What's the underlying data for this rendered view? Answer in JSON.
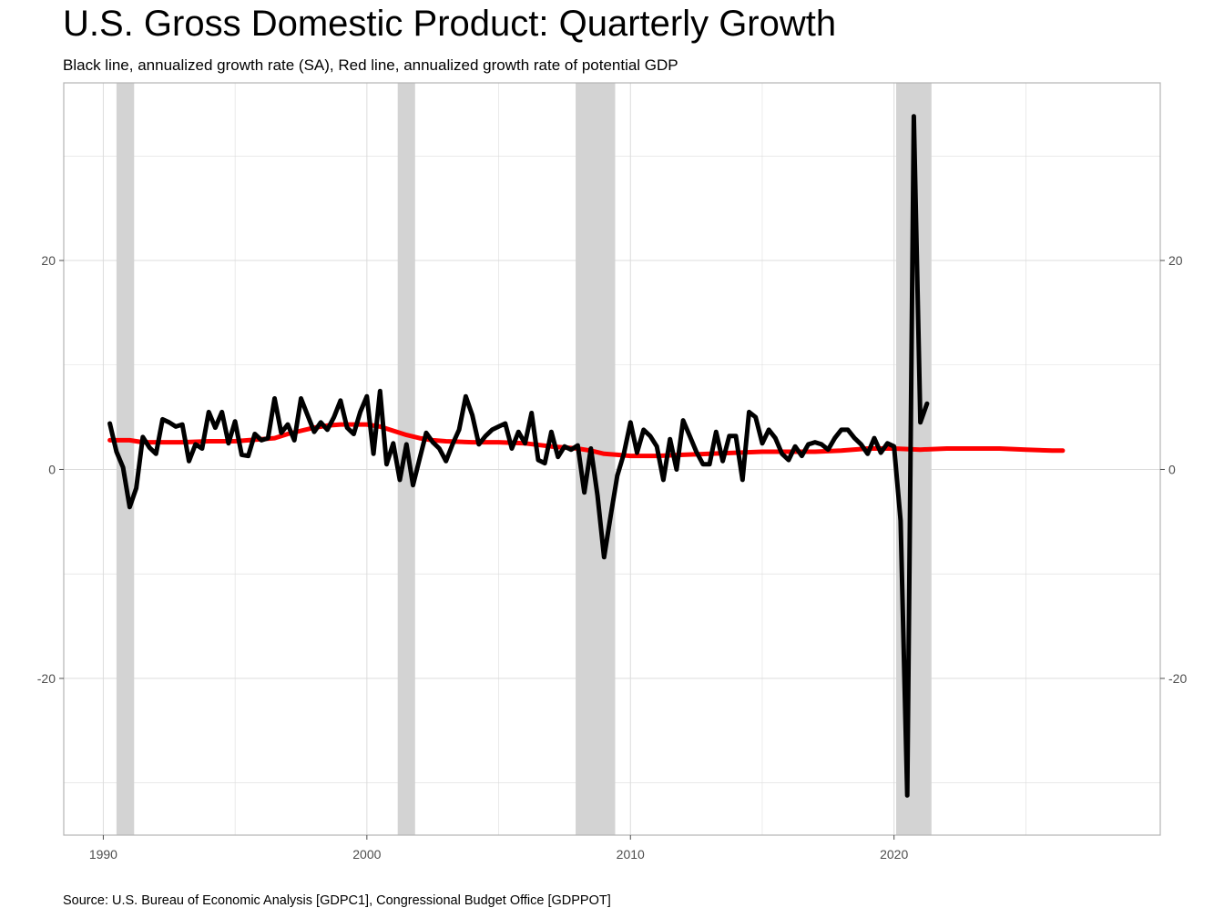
{
  "title": "U.S. Gross Domestic Product: Quarterly Growth",
  "subtitle": "Black line, annualized growth rate (SA), Red line, annualized growth rate of potential GDP",
  "source": "Source: U.S. Bureau of Economic Analysis [GDPC1], Congressional Budget Office [GDPPOT]",
  "colors": {
    "gdp_line": "#000000",
    "potential_line": "#ff0000",
    "recession_band": "#d3d3d3",
    "grid": "#dcdcdc",
    "panel_border": "#b3b3b3"
  },
  "chart_data": {
    "type": "line",
    "title": "U.S. Gross Domestic Product: Quarterly Growth",
    "subtitle": "Black line, annualized growth rate (SA), Red line, annualized growth rate of potential GDP",
    "xlim": [
      1988.5,
      2030.1
    ],
    "ylim": [
      -35,
      37
    ],
    "x_ticks": [
      1990,
      2000,
      2010,
      2020
    ],
    "x_tick_labels": [
      "1990",
      "2000",
      "2010",
      "2020"
    ],
    "y_ticks": [
      -20,
      0,
      20
    ],
    "y_tick_labels": [
      "-20",
      "0",
      "20"
    ],
    "y_axis_sides": [
      "left",
      "right"
    ],
    "grid": true,
    "recessions": [
      {
        "start": 1990.5,
        "end": 1991.17
      },
      {
        "start": 2001.17,
        "end": 2001.83
      },
      {
        "start": 2007.92,
        "end": 2009.42
      },
      {
        "start": 2020.08,
        "end": 2021.42
      }
    ],
    "series": [
      {
        "values": [
          [
            1990.25,
            4.4
          ],
          [
            1990.5,
            1.7
          ],
          [
            1990.75,
            0.2
          ],
          [
            1991.0,
            -3.6
          ],
          [
            1991.25,
            -1.8
          ],
          [
            1991.5,
            3.1
          ],
          [
            1991.75,
            2.1
          ],
          [
            1992.0,
            1.5
          ],
          [
            1992.25,
            4.8
          ],
          [
            1992.5,
            4.5
          ],
          [
            1992.75,
            4.1
          ],
          [
            1993.0,
            4.3
          ],
          [
            1993.25,
            0.8
          ],
          [
            1993.5,
            2.4
          ],
          [
            1993.75,
            2.0
          ],
          [
            1994.0,
            5.5
          ],
          [
            1994.25,
            4.0
          ],
          [
            1994.5,
            5.5
          ],
          [
            1994.75,
            2.5
          ],
          [
            1995.0,
            4.6
          ],
          [
            1995.25,
            1.4
          ],
          [
            1995.5,
            1.3
          ],
          [
            1995.75,
            3.4
          ],
          [
            1996.0,
            2.8
          ],
          [
            1996.25,
            3.0
          ],
          [
            1996.5,
            6.8
          ],
          [
            1996.75,
            3.5
          ],
          [
            1997.0,
            4.3
          ],
          [
            1997.25,
            2.8
          ],
          [
            1997.5,
            6.8
          ],
          [
            1997.75,
            5.2
          ],
          [
            1998.0,
            3.6
          ],
          [
            1998.25,
            4.5
          ],
          [
            1998.5,
            3.8
          ],
          [
            1998.75,
            5.0
          ],
          [
            1999.0,
            6.6
          ],
          [
            1999.25,
            4.0
          ],
          [
            1999.5,
            3.4
          ],
          [
            1999.75,
            5.5
          ],
          [
            2000.0,
            7.0
          ],
          [
            2000.25,
            1.5
          ],
          [
            2000.5,
            7.5
          ],
          [
            2000.75,
            0.5
          ],
          [
            2001.0,
            2.5
          ],
          [
            2001.25,
            -1.0
          ],
          [
            2001.5,
            2.4
          ],
          [
            2001.75,
            -1.5
          ],
          [
            2002.0,
            1.0
          ],
          [
            2002.25,
            3.5
          ],
          [
            2002.5,
            2.6
          ],
          [
            2002.75,
            2.0
          ],
          [
            2003.0,
            0.8
          ],
          [
            2003.25,
            2.4
          ],
          [
            2003.5,
            3.8
          ],
          [
            2003.75,
            7.0
          ],
          [
            2004.0,
            5.2
          ],
          [
            2004.25,
            2.4
          ],
          [
            2004.5,
            3.2
          ],
          [
            2004.75,
            3.8
          ],
          [
            2005.0,
            4.1
          ],
          [
            2005.25,
            4.4
          ],
          [
            2005.5,
            2.0
          ],
          [
            2005.75,
            3.6
          ],
          [
            2006.0,
            2.5
          ],
          [
            2006.25,
            5.4
          ],
          [
            2006.5,
            0.9
          ],
          [
            2006.75,
            0.6
          ],
          [
            2007.0,
            3.6
          ],
          [
            2007.25,
            1.2
          ],
          [
            2007.5,
            2.2
          ],
          [
            2007.75,
            1.9
          ],
          [
            2008.0,
            2.3
          ],
          [
            2008.25,
            -2.2
          ],
          [
            2008.5,
            2.0
          ],
          [
            2008.75,
            -2.5
          ],
          [
            2009.0,
            -8.4
          ],
          [
            2009.25,
            -4.4
          ],
          [
            2009.5,
            -0.6
          ],
          [
            2009.75,
            1.5
          ],
          [
            2010.0,
            4.5
          ],
          [
            2010.25,
            1.6
          ],
          [
            2010.5,
            3.8
          ],
          [
            2010.75,
            3.2
          ],
          [
            2011.0,
            2.2
          ],
          [
            2011.25,
            -1.0
          ],
          [
            2011.5,
            2.9
          ],
          [
            2011.75,
            0.0
          ],
          [
            2012.0,
            4.7
          ],
          [
            2012.25,
            3.2
          ],
          [
            2012.5,
            1.7
          ],
          [
            2012.75,
            0.5
          ],
          [
            2013.0,
            0.5
          ],
          [
            2013.25,
            3.6
          ],
          [
            2013.5,
            0.8
          ],
          [
            2013.75,
            3.2
          ],
          [
            2014.0,
            3.2
          ],
          [
            2014.25,
            -1.0
          ],
          [
            2014.5,
            5.5
          ],
          [
            2014.75,
            5.0
          ],
          [
            2015.0,
            2.5
          ],
          [
            2015.25,
            3.8
          ],
          [
            2015.5,
            3.0
          ],
          [
            2015.75,
            1.5
          ],
          [
            2016.0,
            0.9
          ],
          [
            2016.25,
            2.2
          ],
          [
            2016.5,
            1.3
          ],
          [
            2016.75,
            2.4
          ],
          [
            2017.0,
            2.6
          ],
          [
            2017.25,
            2.4
          ],
          [
            2017.5,
            1.9
          ],
          [
            2017.75,
            3.0
          ],
          [
            2018.0,
            3.8
          ],
          [
            2018.25,
            3.8
          ],
          [
            2018.5,
            3.0
          ],
          [
            2018.75,
            2.4
          ],
          [
            2019.0,
            1.5
          ],
          [
            2019.25,
            3.0
          ],
          [
            2019.5,
            1.6
          ],
          [
            2019.75,
            2.5
          ],
          [
            2020.0,
            2.2
          ],
          [
            2020.25,
            -4.9
          ],
          [
            2020.5,
            -31.2
          ],
          [
            2020.75,
            33.8
          ],
          [
            2021.0,
            4.5
          ],
          [
            2021.25,
            6.3
          ]
        ]
      },
      {
        "values": [
          [
            1990.25,
            2.8
          ],
          [
            1991.0,
            2.8
          ],
          [
            1991.5,
            2.6
          ],
          [
            1993.0,
            2.6
          ],
          [
            1994.0,
            2.7
          ],
          [
            1995.0,
            2.7
          ],
          [
            1996.0,
            2.9
          ],
          [
            1996.5,
            3.0
          ],
          [
            1997.0,
            3.4
          ],
          [
            1997.5,
            3.7
          ],
          [
            1998.0,
            4.0
          ],
          [
            1998.5,
            4.2
          ],
          [
            1999.0,
            4.3
          ],
          [
            2000.0,
            4.3
          ],
          [
            2000.5,
            4.1
          ],
          [
            2001.0,
            3.7
          ],
          [
            2001.5,
            3.3
          ],
          [
            2002.0,
            3.0
          ],
          [
            2002.5,
            2.8
          ],
          [
            2003.0,
            2.7
          ],
          [
            2004.0,
            2.6
          ],
          [
            2005.0,
            2.6
          ],
          [
            2006.0,
            2.5
          ],
          [
            2007.0,
            2.2
          ],
          [
            2008.0,
            2.0
          ],
          [
            2008.5,
            1.8
          ],
          [
            2009.0,
            1.5
          ],
          [
            2009.5,
            1.4
          ],
          [
            2010.0,
            1.3
          ],
          [
            2011.0,
            1.3
          ],
          [
            2012.0,
            1.4
          ],
          [
            2013.0,
            1.5
          ],
          [
            2014.0,
            1.6
          ],
          [
            2015.0,
            1.7
          ],
          [
            2016.0,
            1.7
          ],
          [
            2017.0,
            1.7
          ],
          [
            2018.0,
            1.8
          ],
          [
            2019.0,
            2.0
          ],
          [
            2020.0,
            2.0
          ],
          [
            2021.0,
            1.9
          ],
          [
            2022.0,
            2.0
          ],
          [
            2023.0,
            2.0
          ],
          [
            2024.0,
            2.0
          ],
          [
            2025.0,
            1.9
          ],
          [
            2026.0,
            1.8
          ],
          [
            2026.4,
            1.8
          ]
        ]
      }
    ]
  }
}
